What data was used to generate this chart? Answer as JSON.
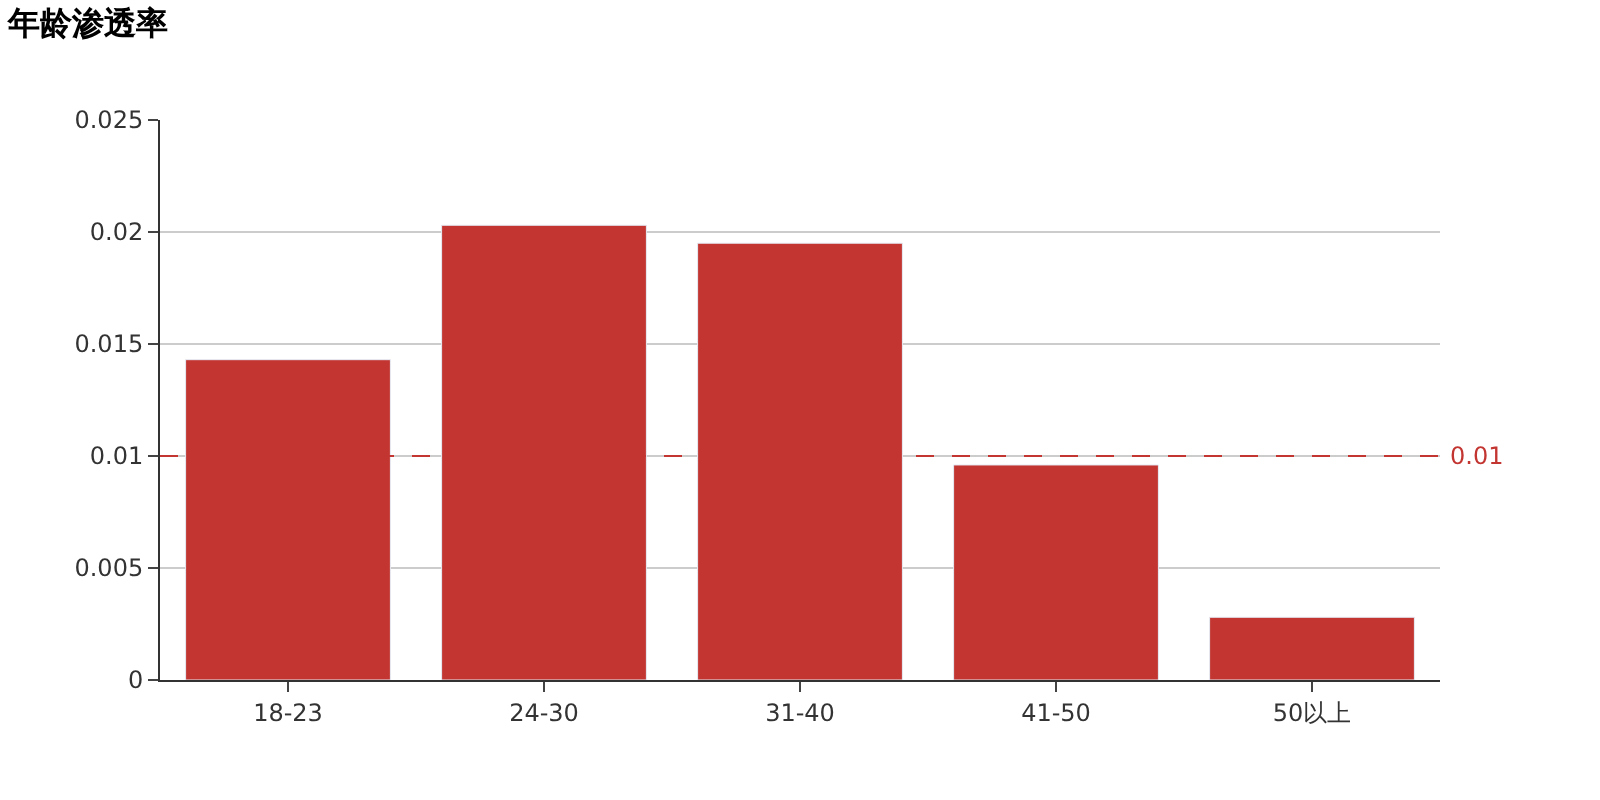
{
  "chart_data": {
    "type": "bar",
    "title": "年龄渗透率",
    "categories": [
      "18-23",
      "24-30",
      "31-40",
      "41-50",
      "50以上"
    ],
    "series": [
      {
        "color": "#c23531",
        "values": [
          0.0143,
          0.0203,
          0.0195,
          0.0096,
          0.0028
        ]
      }
    ],
    "ylim": [
      0,
      0.025
    ],
    "yticks": [
      0,
      0.005,
      0.01,
      0.015,
      0.02,
      0.025
    ],
    "grid": "y",
    "ref_lines": [
      {
        "axis": "y",
        "value": 0.01,
        "label": "0.01",
        "color": "#c23531",
        "line_style": "dashed"
      }
    ]
  }
}
